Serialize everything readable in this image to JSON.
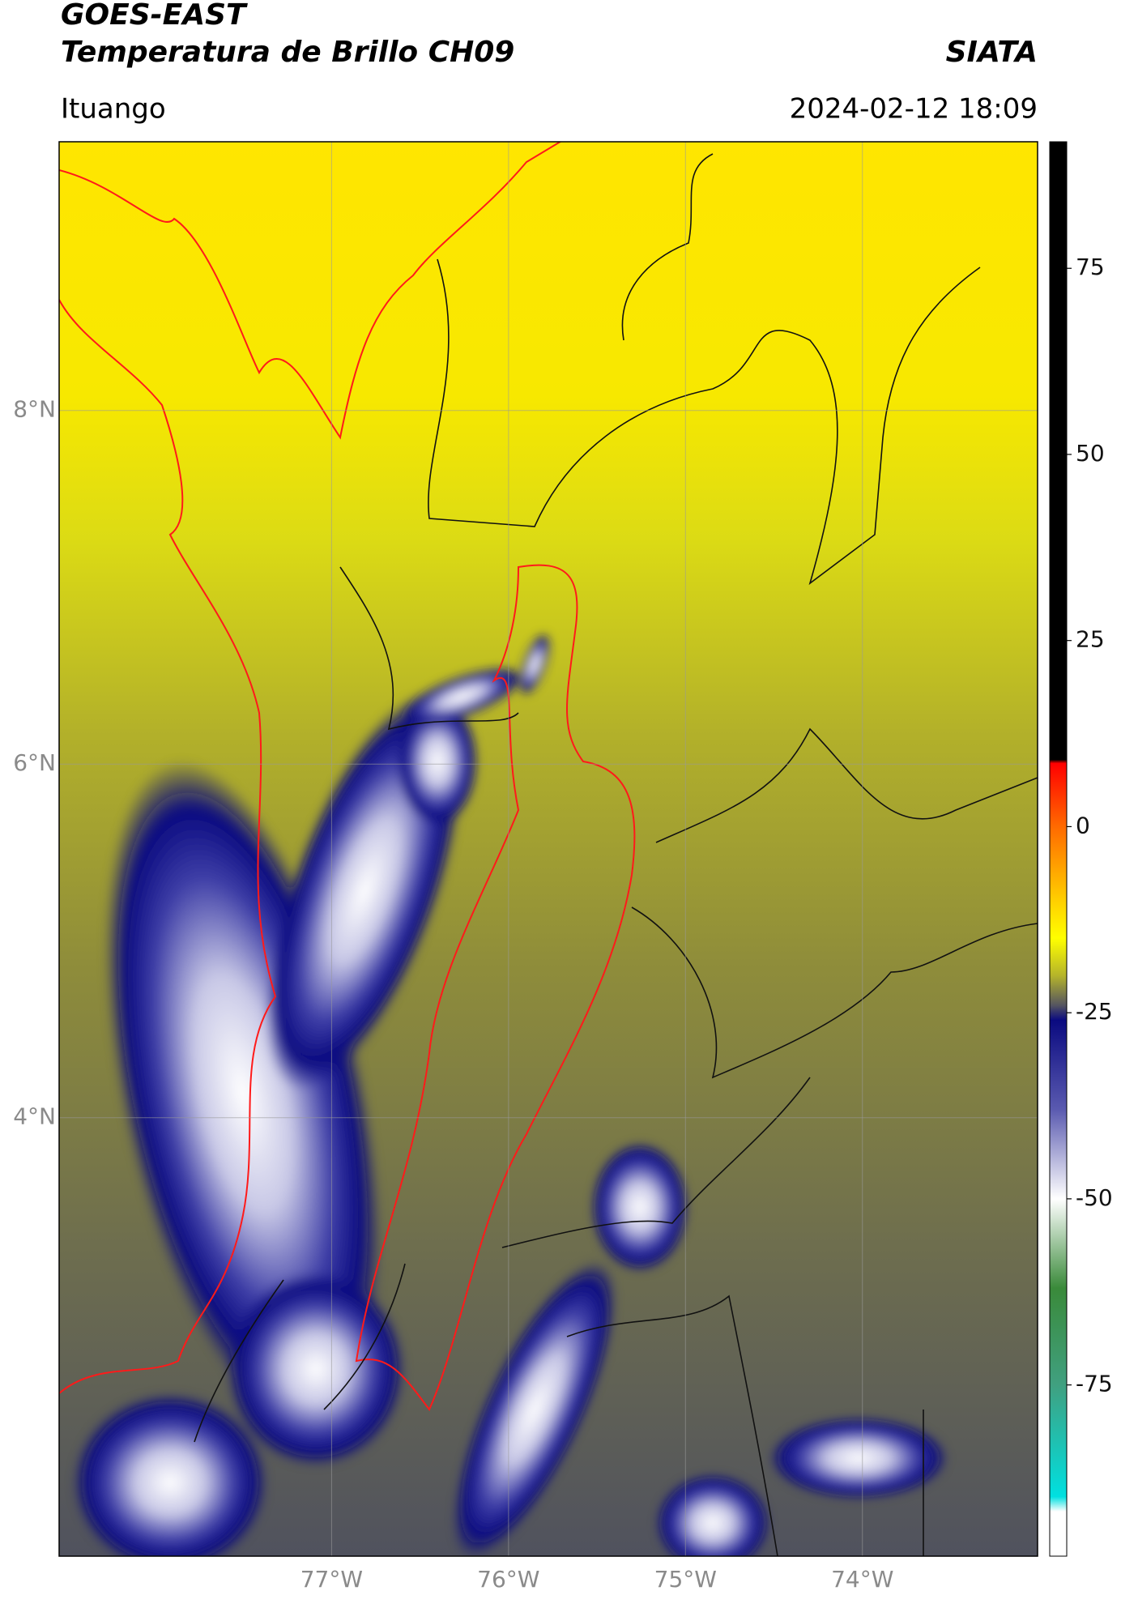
{
  "header": {
    "title": "GOES-EAST",
    "subtitle": "Temperatura de Brillo CH09",
    "source": "SIATA",
    "location": "Ituango",
    "datetime": "2024-02-12 18:09"
  },
  "map": {
    "xlim": [
      -78.54,
      -73.01
    ],
    "ylim": [
      1.52,
      9.52
    ],
    "xticks": [
      {
        "value": -77,
        "label": "77°W"
      },
      {
        "value": -76,
        "label": "76°W"
      },
      {
        "value": -75,
        "label": "75°W"
      },
      {
        "value": -74,
        "label": "74°W"
      }
    ],
    "yticks": [
      {
        "value": 8,
        "label": "8°N"
      },
      {
        "value": 6,
        "label": "6°N"
      },
      {
        "value": 4,
        "label": "4°N"
      }
    ],
    "grid": true
  },
  "colorbar": {
    "clim": [
      -98,
      92
    ],
    "ticks": [
      75,
      50,
      25,
      0,
      -25,
      -50,
      -75
    ],
    "stops": [
      [
        92,
        "#000000"
      ],
      [
        9,
        "#000000"
      ],
      [
        8.5,
        "#ff0000"
      ],
      [
        0,
        "#ff6a00"
      ],
      [
        -10,
        "#ffd000"
      ],
      [
        -15,
        "#ffff00"
      ],
      [
        -20,
        "#b5b42a"
      ],
      [
        -24,
        "#555560"
      ],
      [
        -26,
        "#0a0a80"
      ],
      [
        -38,
        "#5a5ab0"
      ],
      [
        -50,
        "#ffffff"
      ],
      [
        -62,
        "#3a8a3a"
      ],
      [
        -75,
        "#40a080"
      ],
      [
        -90,
        "#00e0e0"
      ],
      [
        -92,
        "#ffffff"
      ],
      [
        -98,
        "#ffffff"
      ]
    ]
  }
}
